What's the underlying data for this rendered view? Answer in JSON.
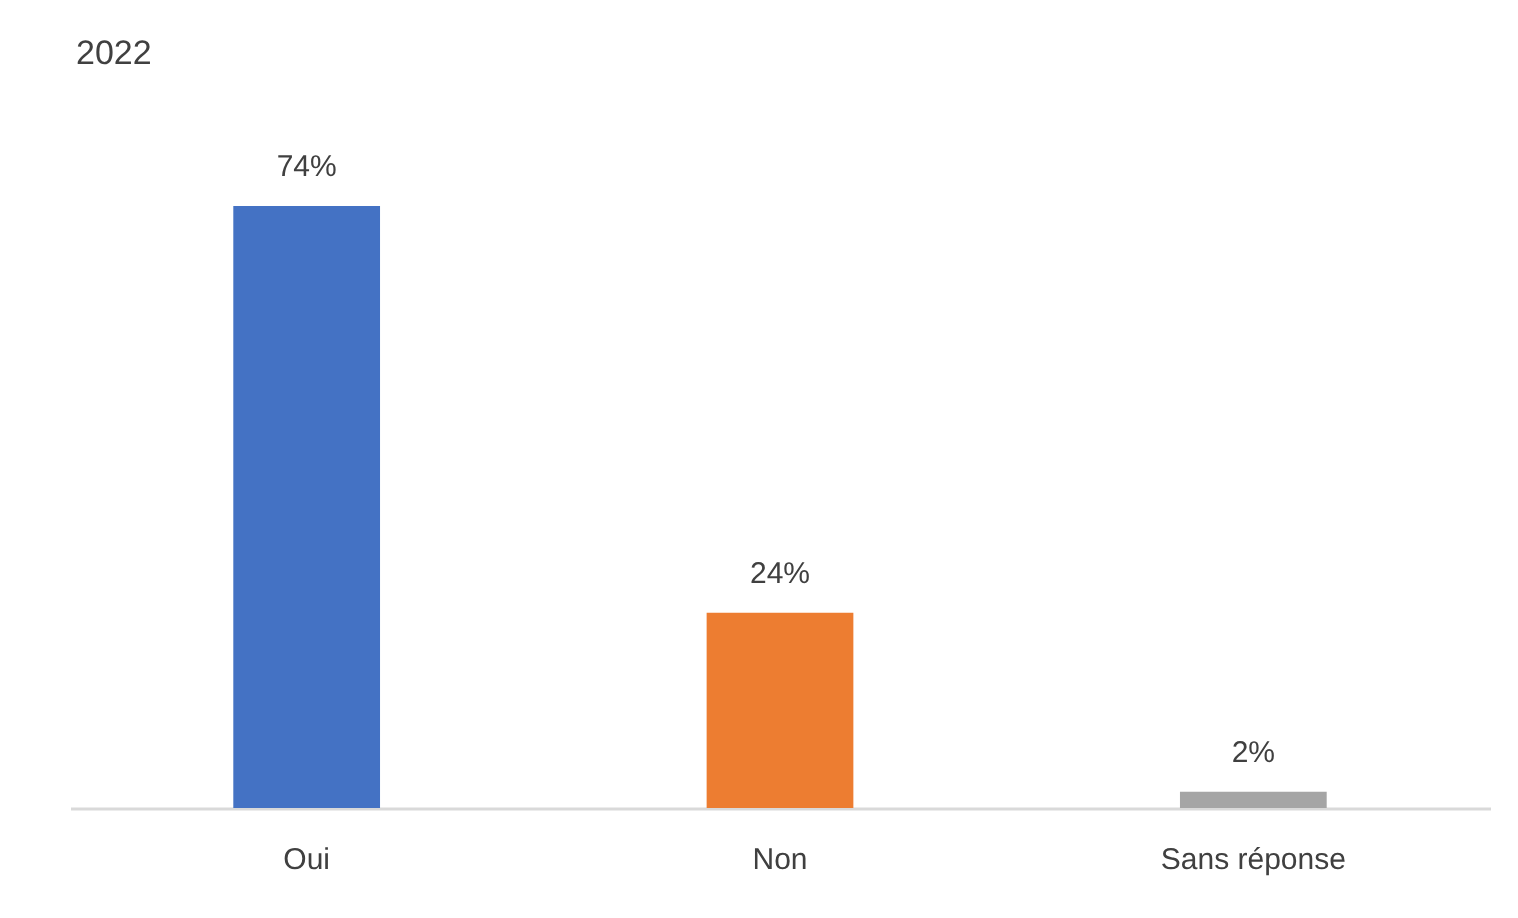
{
  "chart_data": {
    "type": "bar",
    "title": "2022",
    "categories": [
      "Oui",
      "Non",
      "Sans réponse"
    ],
    "values": [
      74,
      24,
      2
    ],
    "colors": [
      "#4472c4",
      "#ed7d31",
      "#a5a5a5"
    ],
    "value_labels": [
      "74%",
      "24%",
      "2%"
    ],
    "legend": false
  }
}
